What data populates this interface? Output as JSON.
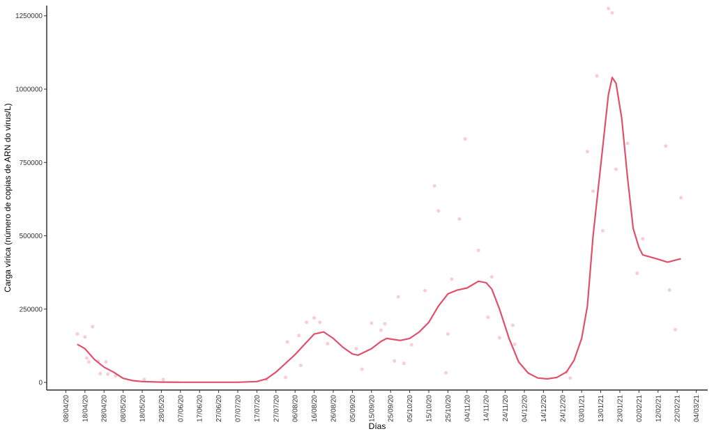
{
  "chart_data": {
    "type": "line",
    "x_label": "Días",
    "y_label": "Carga vírica (número de copias de ARN do virus/L)",
    "xlim": [
      "2020-03-29",
      "2021-03-10"
    ],
    "ylim": [
      -26000,
      1285000
    ],
    "yticks": [
      0,
      250000,
      500000,
      750000,
      1000000,
      1250000
    ],
    "xticks": [
      {
        "value": "2020-04-08",
        "label": "08/04/20"
      },
      {
        "value": "2020-04-18",
        "label": "18/04/20"
      },
      {
        "value": "2020-04-28",
        "label": "28/04/20"
      },
      {
        "value": "2020-05-08",
        "label": "08/05/20"
      },
      {
        "value": "2020-05-18",
        "label": "18/05/20"
      },
      {
        "value": "2020-05-28",
        "label": "28/05/20"
      },
      {
        "value": "2020-06-07",
        "label": "07/06/20"
      },
      {
        "value": "2020-06-17",
        "label": "17/06/20"
      },
      {
        "value": "2020-06-27",
        "label": "27/06/20"
      },
      {
        "value": "2020-07-07",
        "label": "07/07/20"
      },
      {
        "value": "2020-07-17",
        "label": "17/07/20"
      },
      {
        "value": "2020-07-27",
        "label": "27/07/20"
      },
      {
        "value": "2020-08-06",
        "label": "06/08/20"
      },
      {
        "value": "2020-08-16",
        "label": "16/08/20"
      },
      {
        "value": "2020-08-26",
        "label": "26/08/20"
      },
      {
        "value": "2020-09-05",
        "label": "05/09/20"
      },
      {
        "value": "2020-09-15",
        "label": "15/09/20"
      },
      {
        "value": "2020-09-25",
        "label": "25/09/20"
      },
      {
        "value": "2020-10-05",
        "label": "05/10/20"
      },
      {
        "value": "2020-10-15",
        "label": "15/10/20"
      },
      {
        "value": "2020-10-25",
        "label": "25/10/20"
      },
      {
        "value": "2020-11-04",
        "label": "04/11/20"
      },
      {
        "value": "2020-11-14",
        "label": "14/11/20"
      },
      {
        "value": "2020-11-24",
        "label": "24/11/20"
      },
      {
        "value": "2020-12-04",
        "label": "04/12/20"
      },
      {
        "value": "2020-12-14",
        "label": "14/12/20"
      },
      {
        "value": "2020-12-24",
        "label": "24/12/20"
      },
      {
        "value": "2021-01-03",
        "label": "03/01/21"
      },
      {
        "value": "2021-01-13",
        "label": "13/01/21"
      },
      {
        "value": "2021-01-23",
        "label": "23/01/21"
      },
      {
        "value": "2021-02-02",
        "label": "02/02/21"
      },
      {
        "value": "2021-02-12",
        "label": "12/02/21"
      },
      {
        "value": "2021-02-22",
        "label": "22/02/21"
      },
      {
        "value": "2021-03-04",
        "label": "04/03/21"
      }
    ],
    "points": {
      "color": "#f9cdd6",
      "x": [
        "2020-04-14",
        "2020-04-18",
        "2020-04-22",
        "2020-04-19",
        "2020-04-20",
        "2020-04-25",
        "2020-04-26",
        "2020-04-29",
        "2020-04-30",
        "2020-05-04",
        "2020-05-19",
        "2020-05-29",
        "2020-07-22",
        "2020-08-01",
        "2020-08-02",
        "2020-08-08",
        "2020-08-09",
        "2020-08-12",
        "2020-08-16",
        "2020-08-19",
        "2020-08-23",
        "2020-09-07",
        "2020-09-10",
        "2020-09-15",
        "2020-09-20",
        "2020-09-22",
        "2020-09-27",
        "2020-09-29",
        "2020-10-02",
        "2020-10-06",
        "2020-10-13",
        "2020-10-18",
        "2020-10-20",
        "2020-10-24",
        "2020-10-25",
        "2020-10-27",
        "2020-10-31",
        "2020-11-03",
        "2020-11-10",
        "2020-11-15",
        "2020-11-17",
        "2020-11-21",
        "2020-11-28",
        "2020-11-29",
        "2020-12-26",
        "2020-12-28",
        "2021-01-06",
        "2021-01-09",
        "2021-01-11",
        "2021-01-14",
        "2021-01-17",
        "2021-01-19",
        "2021-01-21",
        "2021-01-27",
        "2021-02-04",
        "2021-02-01",
        "2021-02-16",
        "2021-02-18",
        "2021-02-21",
        "2021-02-24"
      ],
      "values": [
        165000,
        155000,
        190000,
        83000,
        70000,
        72000,
        30000,
        70000,
        28000,
        22000,
        10000,
        10000,
        10000,
        17000,
        138000,
        160000,
        58000,
        205000,
        220000,
        205000,
        132000,
        115000,
        45000,
        202000,
        178000,
        200000,
        73000,
        292000,
        65000,
        128000,
        313000,
        670000,
        585000,
        33000,
        165000,
        352000,
        557000,
        830000,
        450000,
        222000,
        360000,
        152000,
        195000,
        130000,
        35000,
        15000,
        787000,
        652000,
        1045000,
        517000,
        1275000,
        1260000,
        727000,
        815000,
        490000,
        372000,
        806000,
        315000,
        180000,
        630000
      ]
    },
    "line": {
      "color": "#e0506a",
      "x": [
        "2020-04-14",
        "2020-04-18",
        "2020-04-23",
        "2020-04-28",
        "2020-05-03",
        "2020-05-08",
        "2020-05-13",
        "2020-05-18",
        "2020-05-28",
        "2020-06-07",
        "2020-06-27",
        "2020-07-07",
        "2020-07-17",
        "2020-07-22",
        "2020-07-27",
        "2020-08-01",
        "2020-08-06",
        "2020-08-11",
        "2020-08-16",
        "2020-08-21",
        "2020-08-26",
        "2020-08-31",
        "2020-09-05",
        "2020-09-08",
        "2020-09-15",
        "2020-09-20",
        "2020-09-23",
        "2020-09-30",
        "2020-10-05",
        "2020-10-10",
        "2020-10-15",
        "2020-10-20",
        "2020-10-25",
        "2020-10-30",
        "2020-11-04",
        "2020-11-10",
        "2020-11-14",
        "2020-11-17",
        "2020-11-21",
        "2020-11-26",
        "2020-12-01",
        "2020-12-06",
        "2020-12-11",
        "2020-12-16",
        "2020-12-21",
        "2020-12-26",
        "2020-12-30",
        "2021-01-03",
        "2021-01-06",
        "2021-01-09",
        "2021-01-14",
        "2021-01-17",
        "2021-01-19",
        "2021-01-21",
        "2021-01-24",
        "2021-01-27",
        "2021-01-30",
        "2021-02-02",
        "2021-02-04",
        "2021-02-12",
        "2021-02-17",
        "2021-02-24"
      ],
      "values": [
        130000,
        115000,
        78000,
        52000,
        35000,
        14000,
        6000,
        3000,
        1000,
        500,
        500,
        500,
        3000,
        12000,
        35000,
        65000,
        95000,
        130000,
        165000,
        172000,
        150000,
        120000,
        97000,
        93000,
        115000,
        140000,
        150000,
        143000,
        150000,
        172000,
        205000,
        260000,
        302000,
        315000,
        322000,
        345000,
        340000,
        318000,
        250000,
        150000,
        70000,
        32000,
        15000,
        12000,
        17000,
        35000,
        75000,
        150000,
        260000,
        500000,
        800000,
        980000,
        1040000,
        1020000,
        900000,
        700000,
        525000,
        460000,
        435000,
        420000,
        410000,
        422000
      ]
    }
  }
}
